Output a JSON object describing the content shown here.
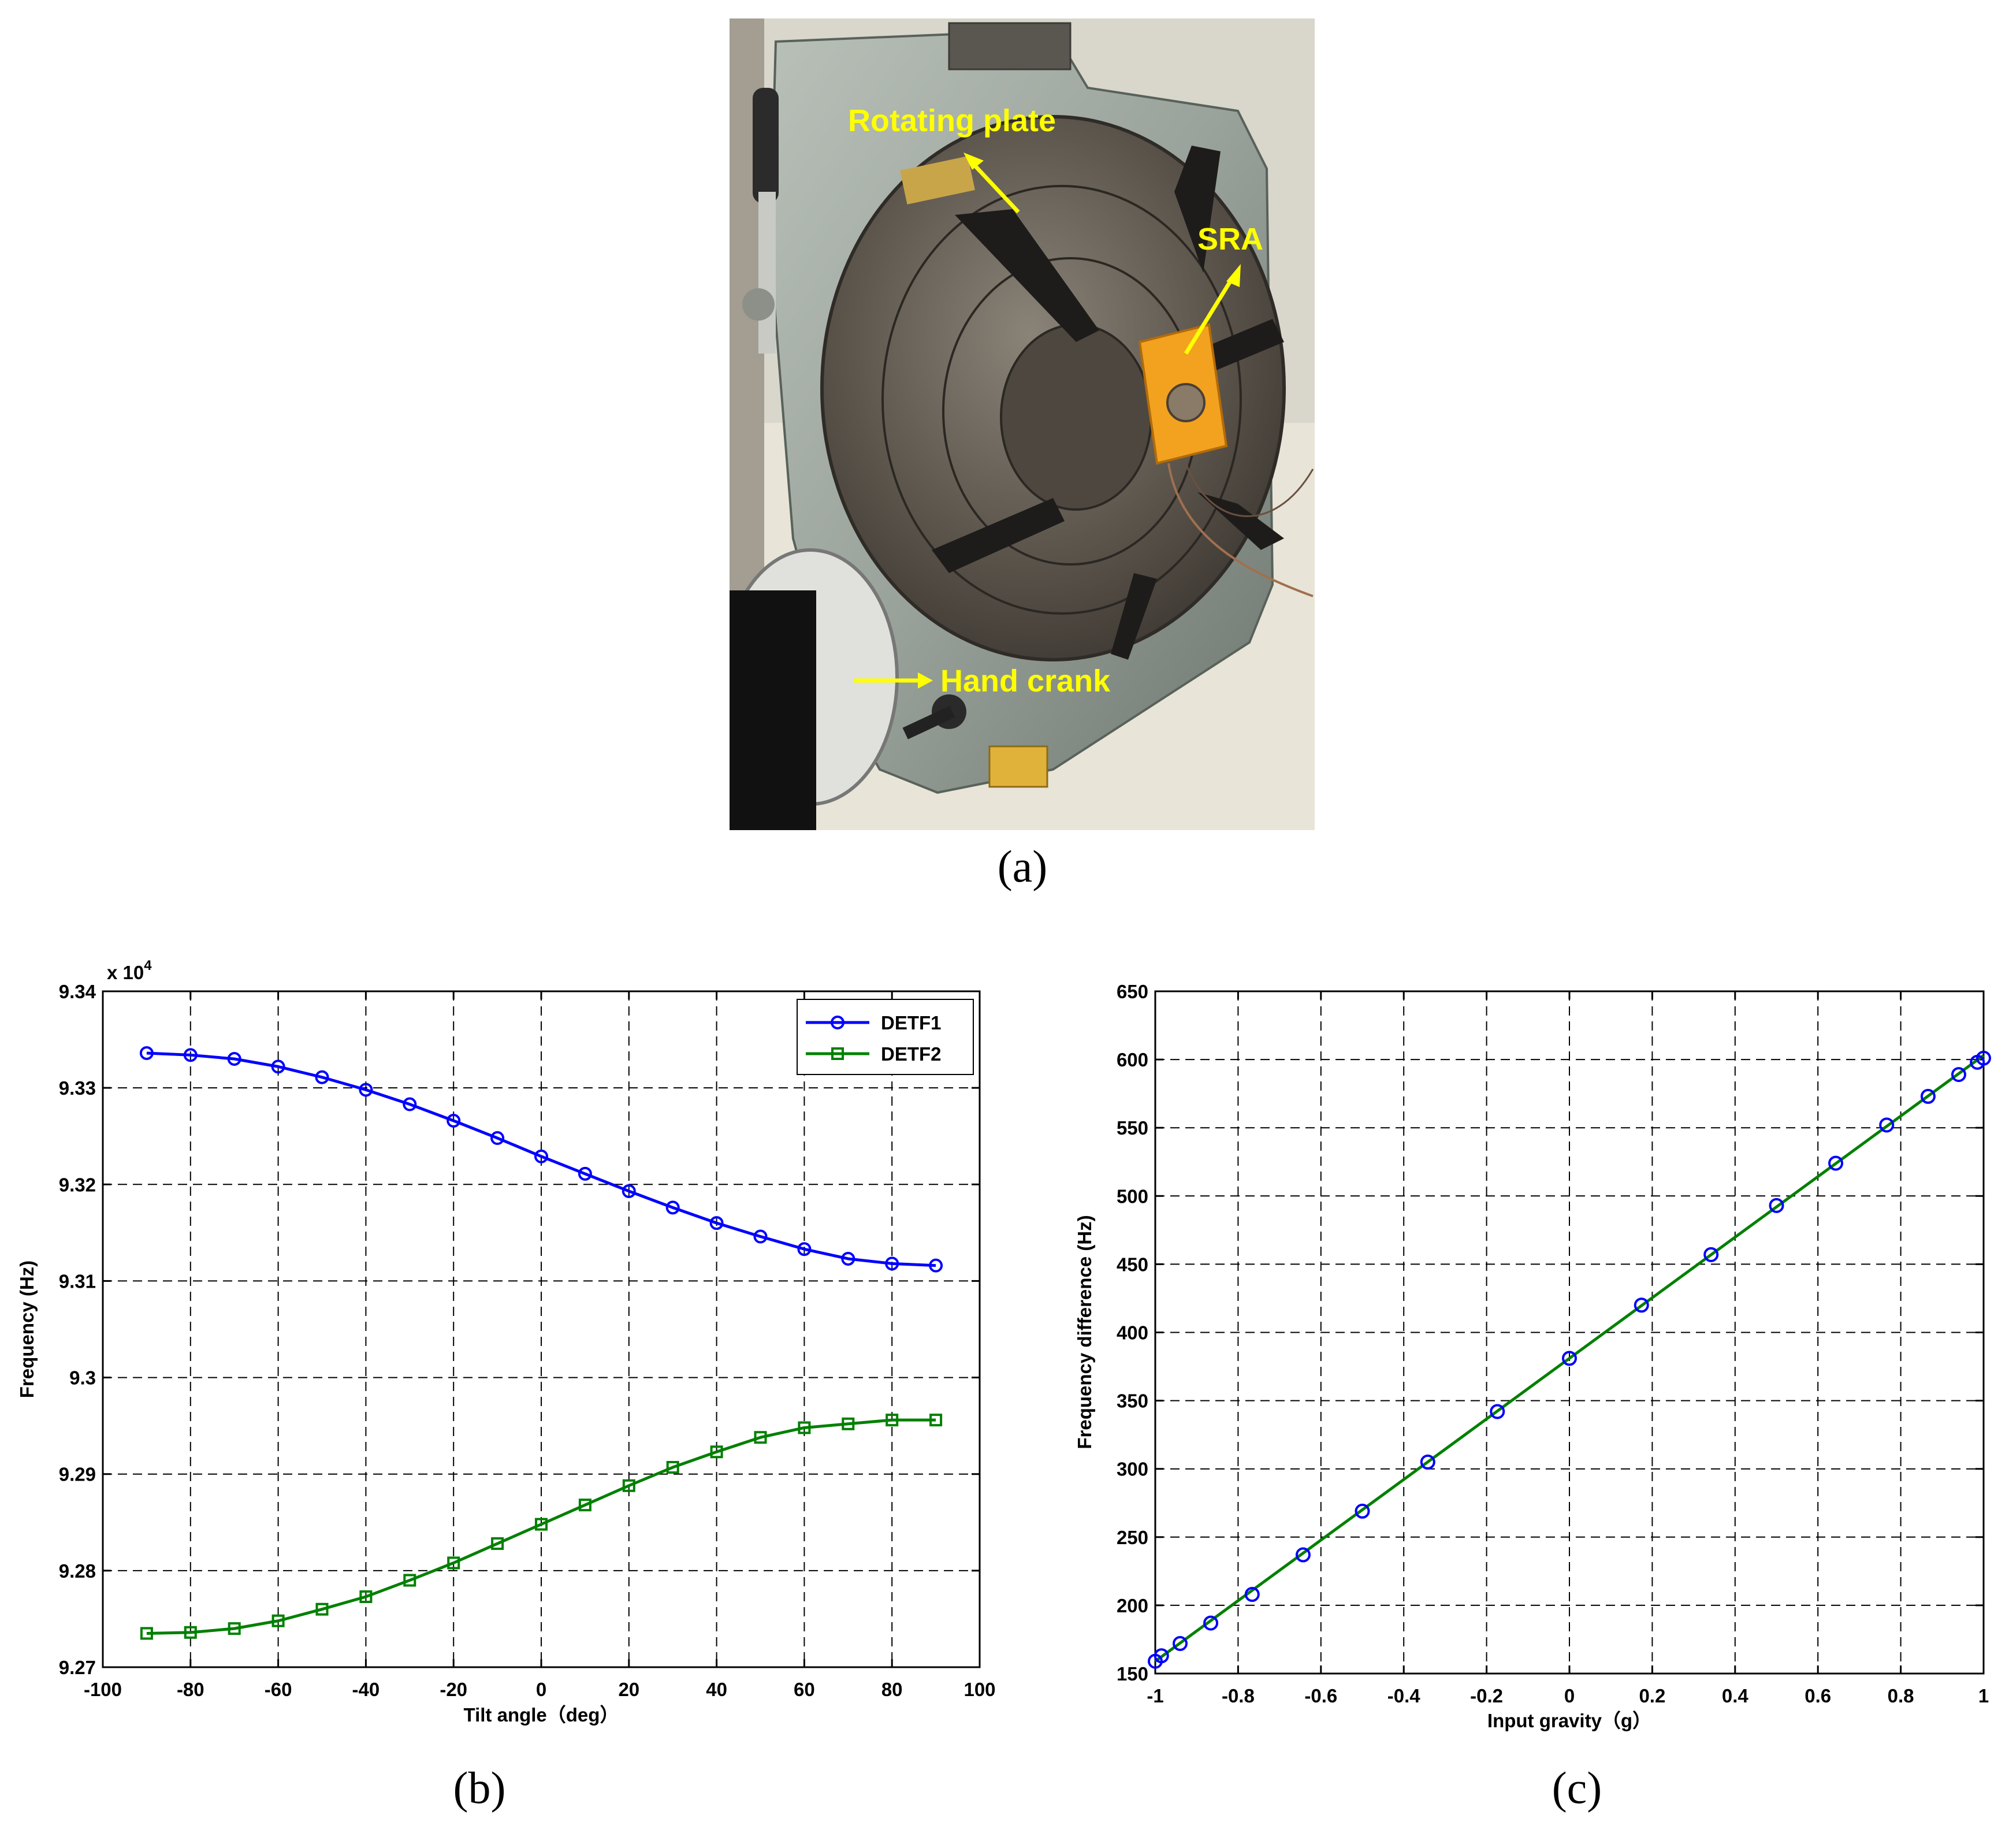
{
  "photo": {
    "labels": {
      "rotating_plate": "Rotating plate",
      "sra": "SRA",
      "hand_crank": "Hand crank"
    }
  },
  "panels": {
    "a": "(a)",
    "b": "(b)",
    "c": "(c)"
  },
  "colors": {
    "detf1": "#0000ff",
    "detf2": "#008000",
    "fit_line": "#008000",
    "markers_c": "#0000ff",
    "annotation": "#ffff00"
  },
  "chart_data": [
    {
      "type": "line",
      "xlabel": "Tilt angle（deg）",
      "ylabel": "Frequency (Hz)",
      "y_multiplier": "x 10",
      "y_multiplier_exp": "4",
      "xlim": [
        -100,
        100
      ],
      "ylim": [
        9.27,
        9.34
      ],
      "xticks": [
        "-100",
        "-80",
        "-60",
        "-40",
        "-20",
        "0",
        "20",
        "40",
        "60",
        "80",
        "100"
      ],
      "yticks": [
        "9.27",
        "9.28",
        "9.29",
        "9.3",
        "9.31",
        "9.32",
        "9.33",
        "9.34"
      ],
      "grid": true,
      "legend_position": "top-right",
      "x": [
        -90,
        -80,
        -70,
        -60,
        -50,
        -40,
        -30,
        -20,
        -10,
        0,
        10,
        20,
        30,
        40,
        50,
        60,
        70,
        80,
        90
      ],
      "series": [
        {
          "name": "DETF1",
          "marker": "circle",
          "values": [
            9.3336,
            9.3334,
            9.333,
            9.3322,
            9.3311,
            9.3298,
            9.3283,
            9.3266,
            9.3248,
            9.3229,
            9.3211,
            9.3193,
            9.3176,
            9.316,
            9.3146,
            9.3133,
            9.3123,
            9.3118,
            9.3116
          ]
        },
        {
          "name": "DETF2",
          "marker": "square",
          "values": [
            9.2735,
            9.2736,
            9.274,
            9.2748,
            9.276,
            9.2773,
            9.279,
            9.2808,
            9.2828,
            9.2848,
            9.2868,
            9.2888,
            9.2907,
            9.2923,
            9.2938,
            9.2948,
            9.2952,
            9.2956,
            9.2956
          ]
        }
      ]
    },
    {
      "type": "scatter",
      "xlabel": "Input gravity（g）",
      "ylabel": "Frequency difference (Hz)",
      "xlim": [
        -1,
        1
      ],
      "ylim": [
        150,
        650
      ],
      "xticks": [
        "-1",
        "-0.8",
        "-0.6",
        "-0.4",
        "-0.2",
        "0",
        "0.2",
        "0.4",
        "0.6",
        "0.8",
        "1"
      ],
      "yticks": [
        "150",
        "200",
        "250",
        "300",
        "350",
        "400",
        "450",
        "500",
        "550",
        "600",
        "650"
      ],
      "grid": true,
      "fit_line": {
        "x": [
          -1,
          1
        ],
        "y": [
          159,
          603
        ]
      },
      "series": [
        {
          "marker": "circle",
          "x": [
            -1.0,
            -0.985,
            -0.94,
            -0.866,
            -0.766,
            -0.643,
            -0.5,
            -0.342,
            -0.174,
            0.0,
            0.174,
            0.342,
            0.5,
            0.643,
            0.766,
            0.866,
            0.94,
            0.985,
            1.0
          ],
          "values": [
            159,
            163,
            172,
            187,
            208,
            237,
            269,
            305,
            342,
            381,
            420,
            457,
            493,
            524,
            552,
            573,
            589,
            598,
            601
          ]
        }
      ]
    }
  ]
}
